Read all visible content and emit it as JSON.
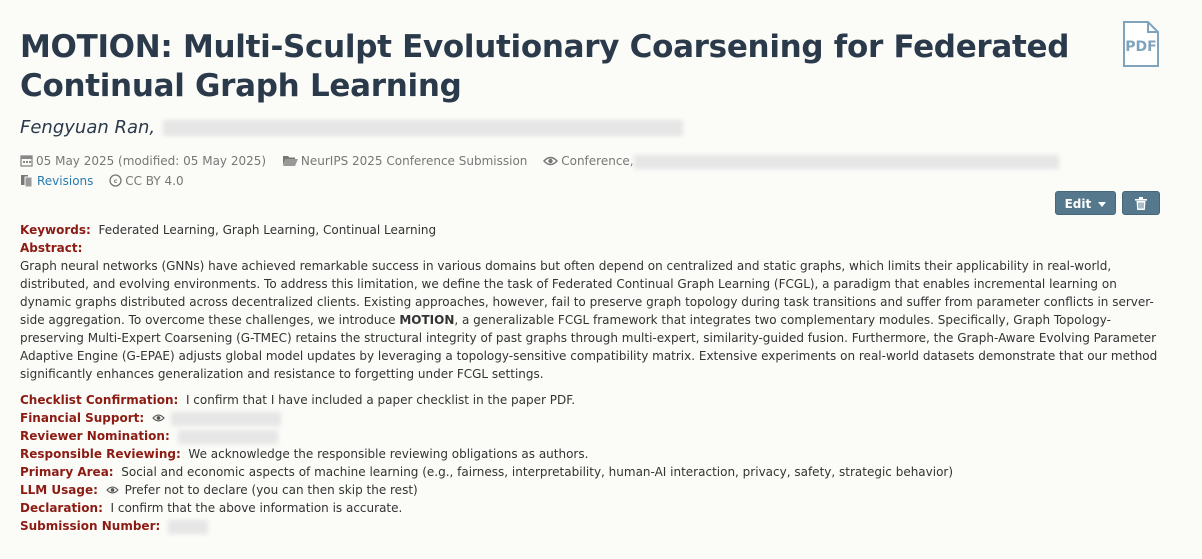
{
  "title": "MOTION: Multi-Sculpt Evolutionary Coarsening for Federated Continual Graph Learning",
  "pdf_icon_label": "PDF",
  "authors": {
    "first": "Fengyuan Ran,"
  },
  "meta": {
    "date": "05 May 2025 (modified: 05 May 2025)",
    "venue": "NeurIPS 2025 Conference Submission",
    "readers": "Conference,",
    "revisions": "Revisions",
    "license": "CC BY 4.0"
  },
  "buttons": {
    "edit": "Edit",
    "delete_icon": "trash-icon"
  },
  "fields": {
    "keywords_label": "Keywords:",
    "keywords_value": "Federated Learning, Graph Learning, Continual Learning",
    "abstract_label": "Abstract:",
    "abstract_part1": "Graph neural networks (GNNs) have achieved remarkable success in various domains but often depend on centralized and static graphs, which limits their applicability in real-world, distributed, and evolving environments. To address this limitation, we define the task of Federated Continual Graph Learning (FCGL), a paradigm that enables incremental learning on dynamic graphs distributed across decentralized clients. Existing approaches, however, fail to preserve graph topology during task transitions and suffer from parameter conflicts in server-side aggregation. To overcome these challenges, we introduce ",
    "abstract_bold": "MOTION",
    "abstract_part2": ", a generalizable FCGL framework that integrates two complementary modules. Specifically, Graph Topology-preserving Multi-Expert Coarsening (G-TMEC) retains the structural integrity of past graphs through multi-expert, similarity-guided fusion. Furthermore, the Graph-Aware Evolving Parameter Adaptive Engine (G-EPAE) adjusts global model updates by leveraging a topology-sensitive compatibility matrix. Extensive experiments on real-world datasets demonstrate that our method significantly enhances generalization and resistance to forgetting under FCGL settings.",
    "checklist_label": "Checklist Confirmation:",
    "checklist_value": "I confirm that I have included a paper checklist in the paper PDF.",
    "financial_label": "Financial Support:",
    "reviewer_label": "Reviewer Nomination:",
    "responsible_label": "Responsible Reviewing:",
    "responsible_value": "We acknowledge the responsible reviewing obligations as authors.",
    "primary_label": "Primary Area:",
    "primary_value": "Social and economic aspects of machine learning (e.g., fairness, interpretability, human-AI interaction, privacy, safety, strategic behavior)",
    "llm_label": "LLM Usage:",
    "llm_value": "Prefer not to declare (you can then skip the rest)",
    "declaration_label": "Declaration:",
    "declaration_value": "I confirm that the above information is accurate.",
    "submission_label": "Submission Number:"
  },
  "colors": {
    "title": "#2b3a4a",
    "label": "#8c1b13",
    "link": "#2a7ab0",
    "button": "#55788c"
  }
}
